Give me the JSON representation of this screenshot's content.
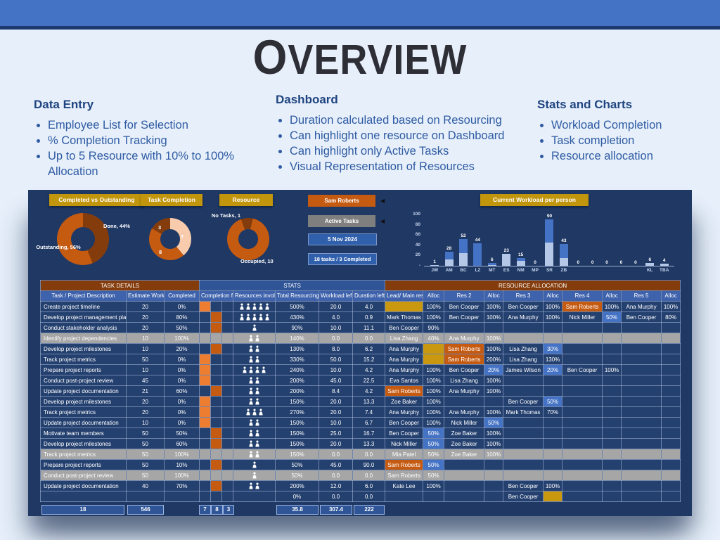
{
  "page": {
    "title": "Overview"
  },
  "sections": [
    {
      "heading": "Data Entry",
      "bullets": [
        "Employee List for Selection",
        "% Completion Tracking",
        "Up to 5 Resource with 10% to 100% Allocation"
      ]
    },
    {
      "heading": "Dashboard",
      "bullets": [
        "Duration calculated based on Resourcing",
        "Can highlight one resource on Dashboard",
        "Can highlight only Active Tasks",
        "Visual Representation of Resources"
      ]
    },
    {
      "heading": "Stats and Charts",
      "bullets": [
        "Workload Completion",
        "Task completion",
        "Resource allocation"
      ]
    }
  ],
  "dashboard": {
    "chips": [
      {
        "label": "Completed vs Outstanding"
      },
      {
        "label": "Task Completion"
      },
      {
        "label": "Resource"
      }
    ],
    "workload_chip": "Current Workload per person",
    "buttons": [
      {
        "label": "Sam Roberts"
      },
      {
        "label": "Active Tasks"
      },
      {
        "label": "5 Nov 2024"
      },
      {
        "label": "18 tasks / 3 Completed"
      }
    ],
    "donut1_labels": {
      "done": "Done, 44%",
      "outstanding": "Outstanding, 56%"
    },
    "donut2_labels": [
      "3",
      "7",
      "8"
    ],
    "donut3_labels": {
      "no_tasks": "No Tasks, 1",
      "occupied": "Occupied, 10"
    }
  },
  "chart_data": [
    {
      "type": "pie",
      "title": "Completed vs Outstanding",
      "donut": true,
      "labels": [
        "Done",
        "Outstanding"
      ],
      "values": [
        44,
        56
      ],
      "unit": "%",
      "colors": [
        "#843C0C",
        "#C55A11"
      ],
      "start": 0
    },
    {
      "type": "pie",
      "title": "Task Completion",
      "donut": true,
      "labels": [
        "7",
        "8",
        "3"
      ],
      "values": [
        7,
        8,
        3
      ],
      "colors": [
        "#F8CBAD",
        "#C55A11",
        "#843C0C"
      ],
      "start": 0
    },
    {
      "type": "pie",
      "title": "Resource",
      "donut": true,
      "labels": [
        "No Tasks",
        "Occupied"
      ],
      "values": [
        1,
        10
      ],
      "colors": [
        "#843C0C",
        "#C55A11"
      ],
      "start": -20
    },
    {
      "type": "bar",
      "title": "Current Workload per person",
      "stacked": true,
      "categories": [
        "JW",
        "AM",
        "BC",
        "LZ",
        "MT",
        "ES",
        "NM",
        "MP",
        "SR",
        "ZB",
        "",
        "",
        "",
        "",
        "",
        "KL",
        "TBA"
      ],
      "totals": [
        1,
        28,
        52,
        44,
        6,
        23,
        15,
        0,
        90,
        43,
        0,
        0,
        0,
        0,
        0,
        6,
        4
      ],
      "series": [
        {
          "name": "lower",
          "color": "#B4C7E7",
          "values": [
            1,
            12,
            25,
            0,
            2,
            23,
            10,
            0,
            45,
            15,
            0,
            0,
            0,
            0,
            0,
            6,
            4
          ]
        },
        {
          "name": "upper",
          "color": "#4472C4",
          "values": [
            0,
            16,
            27,
            44,
            4,
            0,
            5,
            0,
            45,
            28,
            0,
            0,
            0,
            0,
            0,
            0,
            0
          ]
        }
      ],
      "ylim": [
        0,
        100
      ],
      "yticks": [
        0,
        20,
        40,
        60,
        80,
        100
      ],
      "ytick_labels": [
        "-",
        "20",
        "40",
        "60",
        "80",
        "100"
      ],
      "legend": "none",
      "grid": false
    }
  ],
  "table": {
    "sections": [
      "TASK DETAILS",
      "STATS",
      "RESOURCE ALLOCATION"
    ],
    "headers": [
      "Task / Project Description",
      "Estimate Workload",
      "Completed",
      "Completion flag",
      "Resources involved",
      "Total Resourcing",
      "Workload left",
      "Duration left (*)",
      "Lead/ Main resource",
      "Alloc",
      "Res 2",
      "Alloc",
      "Res 3",
      "Alloc",
      "Res 4",
      "Alloc",
      "Res 5",
      "Alloc"
    ],
    "rows": [
      {
        "task": "Create project timeline",
        "est": "20",
        "comp": "0%",
        "flag": 1,
        "icons": 5,
        "total": "500%",
        "wl": "20.0",
        "dl": "4.0",
        "done": false,
        "alloc": [
          [
            "",
            "gold"
          ],
          [
            "100%",
            ""
          ],
          [
            "Ben Cooper",
            ""
          ],
          [
            "100%",
            ""
          ],
          [
            "Ben Cooper",
            ""
          ],
          [
            "100%",
            ""
          ],
          [
            "Sam Roberts",
            "orange"
          ],
          [
            "100%",
            ""
          ],
          [
            "Ana Murphy",
            ""
          ],
          [
            "100%",
            ""
          ]
        ]
      },
      {
        "task": "Develop project management plan",
        "est": "20",
        "comp": "80%",
        "flag": 2,
        "icons": 5,
        "total": "430%",
        "wl": "4.0",
        "dl": "0.9",
        "done": false,
        "alloc": [
          [
            "Mark Thomas",
            ""
          ],
          [
            "100%",
            ""
          ],
          [
            "Ben Cooper",
            ""
          ],
          [
            "100%",
            ""
          ],
          [
            "Ana Murphy",
            ""
          ],
          [
            "100%",
            ""
          ],
          [
            "Nick Miller",
            ""
          ],
          [
            "50%",
            "blue"
          ],
          [
            "Ben Cooper",
            ""
          ],
          [
            "80%",
            ""
          ]
        ]
      },
      {
        "task": "Conduct stakeholder analysis",
        "est": "20",
        "comp": "50%",
        "flag": 2,
        "icons": 1,
        "total": "90%",
        "wl": "10.0",
        "dl": "11.1",
        "done": false,
        "alloc": [
          [
            "Ben Cooper",
            ""
          ],
          [
            "90%",
            ""
          ]
        ]
      },
      {
        "task": "Identify project dependencies",
        "est": "10",
        "comp": "100%",
        "flag": 0,
        "icons": 2,
        "total": "140%",
        "wl": "0.0",
        "dl": "0.0",
        "done": true,
        "alloc": [
          [
            "Lisa Zhang",
            ""
          ],
          [
            "40%",
            ""
          ],
          [
            "Ana Murphy",
            ""
          ],
          [
            "100%",
            ""
          ]
        ]
      },
      {
        "task": "Develop project milestones",
        "est": "10",
        "comp": "20%",
        "flag": 2,
        "icons": 2,
        "total": "130%",
        "wl": "8.0",
        "dl": "6.2",
        "done": false,
        "alloc": [
          [
            "Ana Murphy",
            ""
          ],
          [
            "",
            "gold"
          ],
          [
            "Sam Roberts",
            "orange"
          ],
          [
            "100%",
            ""
          ],
          [
            "Lisa Zhang",
            ""
          ],
          [
            "30%",
            "blue"
          ]
        ]
      },
      {
        "task": "Track project metrics",
        "est": "50",
        "comp": "0%",
        "flag": 1,
        "icons": 2,
        "total": "330%",
        "wl": "50.0",
        "dl": "15.2",
        "done": false,
        "alloc": [
          [
            "Ana Murphy",
            ""
          ],
          [
            "",
            "gold"
          ],
          [
            "Sam Roberts",
            "orange"
          ],
          [
            "200%",
            ""
          ],
          [
            "Lisa Zhang",
            ""
          ],
          [
            "130%",
            ""
          ]
        ]
      },
      {
        "task": "Prepare project reports",
        "est": "10",
        "comp": "0%",
        "flag": 1,
        "icons": 4,
        "total": "240%",
        "wl": "10.0",
        "dl": "4.2",
        "done": false,
        "alloc": [
          [
            "Ana Murphy",
            ""
          ],
          [
            "100%",
            ""
          ],
          [
            "Ben Cooper",
            ""
          ],
          [
            "20%",
            "blue"
          ],
          [
            "James Wilson",
            ""
          ],
          [
            "20%",
            "blue"
          ],
          [
            "Ben Cooper",
            ""
          ],
          [
            "100%",
            ""
          ]
        ]
      },
      {
        "task": "Conduct post-project review",
        "est": "45",
        "comp": "0%",
        "flag": 1,
        "icons": 2,
        "total": "200%",
        "wl": "45.0",
        "dl": "22.5",
        "done": false,
        "alloc": [
          [
            "Eva Santos",
            ""
          ],
          [
            "100%",
            ""
          ],
          [
            "Lisa Zhang",
            ""
          ],
          [
            "100%",
            ""
          ]
        ]
      },
      {
        "task": "Update project documentation",
        "est": "21",
        "comp": "60%",
        "flag": 2,
        "icons": 2,
        "total": "200%",
        "wl": "8.4",
        "dl": "4.2",
        "done": false,
        "alloc": [
          [
            "Sam Roberts",
            "orange"
          ],
          [
            "100%",
            ""
          ],
          [
            "Ana Murphy",
            ""
          ],
          [
            "100%",
            ""
          ]
        ]
      },
      {
        "task": "Develop project milestones",
        "est": "20",
        "comp": "0%",
        "flag": 1,
        "icons": 2,
        "total": "150%",
        "wl": "20.0",
        "dl": "13.3",
        "done": false,
        "alloc": [
          [
            "Zoe Baker",
            ""
          ],
          [
            "100%",
            ""
          ],
          [
            "",
            ""
          ],
          [
            "",
            ""
          ],
          [
            "Ben Cooper",
            ""
          ],
          [
            "50%",
            "blue"
          ]
        ]
      },
      {
        "task": "Track project metrics",
        "est": "20",
        "comp": "0%",
        "flag": 1,
        "icons": 3,
        "total": "270%",
        "wl": "20.0",
        "dl": "7.4",
        "done": false,
        "alloc": [
          [
            "Ana Murphy",
            ""
          ],
          [
            "100%",
            ""
          ],
          [
            "Ana Murphy",
            ""
          ],
          [
            "100%",
            ""
          ],
          [
            "Mark Thomas",
            ""
          ],
          [
            "70%",
            ""
          ]
        ]
      },
      {
        "task": "Update project documentation",
        "est": "10",
        "comp": "0%",
        "flag": 1,
        "icons": 2,
        "total": "150%",
        "wl": "10.0",
        "dl": "6.7",
        "done": false,
        "alloc": [
          [
            "Ben Cooper",
            ""
          ],
          [
            "100%",
            ""
          ],
          [
            "Nick Miller",
            ""
          ],
          [
            "50%",
            "blue"
          ]
        ]
      },
      {
        "task": "Motivate team members",
        "est": "50",
        "comp": "50%",
        "flag": 2,
        "icons": 2,
        "total": "150%",
        "wl": "25.0",
        "dl": "16.7",
        "done": false,
        "alloc": [
          [
            "Ben Cooper",
            ""
          ],
          [
            "50%",
            "blue"
          ],
          [
            "Zoe Baker",
            ""
          ],
          [
            "100%",
            ""
          ]
        ]
      },
      {
        "task": "Develop project milestones",
        "est": "50",
        "comp": "60%",
        "flag": 2,
        "icons": 2,
        "total": "150%",
        "wl": "20.0",
        "dl": "13.3",
        "done": false,
        "alloc": [
          [
            "Nick Miller",
            ""
          ],
          [
            "50%",
            "blue"
          ],
          [
            "Zoe Baker",
            ""
          ],
          [
            "100%",
            ""
          ]
        ]
      },
      {
        "task": "Track project metrics",
        "est": "50",
        "comp": "100%",
        "flag": 0,
        "icons": 2,
        "total": "150%",
        "wl": "0.0",
        "dl": "0.0",
        "done": true,
        "alloc": [
          [
            "Mia Patel",
            ""
          ],
          [
            "50%",
            ""
          ],
          [
            "Zoe Baker",
            ""
          ],
          [
            "100%",
            ""
          ]
        ]
      },
      {
        "task": "Prepare project reports",
        "est": "50",
        "comp": "10%",
        "flag": 2,
        "icons": 1,
        "total": "50%",
        "wl": "45.0",
        "dl": "90.0",
        "done": false,
        "alloc": [
          [
            "Sam Roberts",
            "orange"
          ],
          [
            "50%",
            "blue"
          ]
        ]
      },
      {
        "task": "Conduct post-project review",
        "est": "50",
        "comp": "100%",
        "flag": 0,
        "icons": 1,
        "total": "50%",
        "wl": "0.0",
        "dl": "0.0",
        "done": true,
        "alloc": [
          [
            "Sam Roberts",
            ""
          ],
          [
            "50%",
            ""
          ]
        ]
      },
      {
        "task": "Update project documentation",
        "est": "40",
        "comp": "70%",
        "flag": 2,
        "icons": 2,
        "total": "200%",
        "wl": "12.0",
        "dl": "6.0",
        "done": false,
        "alloc": [
          [
            "Kate Lee",
            ""
          ],
          [
            "100%",
            ""
          ],
          [
            "",
            ""
          ],
          [
            "",
            ""
          ],
          [
            "Ben Cooper",
            ""
          ],
          [
            "100%",
            ""
          ]
        ]
      },
      {
        "task": "",
        "est": "",
        "comp": "",
        "flag": 0,
        "icons": 0,
        "total": "0%",
        "wl": "0.0",
        "dl": "0.0",
        "done": false,
        "alloc": [
          [
            "",
            ""
          ],
          [
            "",
            ""
          ],
          [
            "",
            ""
          ],
          [
            "",
            ""
          ],
          [
            "Ben Cooper",
            ""
          ],
          [
            "",
            "gold"
          ]
        ]
      }
    ],
    "footer": {
      "tasks": "18",
      "workload": "546",
      "flags": [
        "7",
        "8",
        "3"
      ],
      "resourcing": "35.8",
      "workload_left": "307.4",
      "duration_left": "222"
    }
  },
  "colors": {
    "topbar": "#4472C4",
    "page_bg": "#E6EFFA",
    "navy": "#1F3864",
    "gold": "#C1950C",
    "orange": "#C55A11",
    "light_orange": "#ED7D31",
    "pink": "#F8CBAD",
    "brown": "#843C0C",
    "blue_mid": "#4472C4",
    "blue_light": "#B4C7E7",
    "gray_done": "#A6A6A6",
    "header_blue": "#3E62AB",
    "stats_blue": "#2F5597"
  }
}
